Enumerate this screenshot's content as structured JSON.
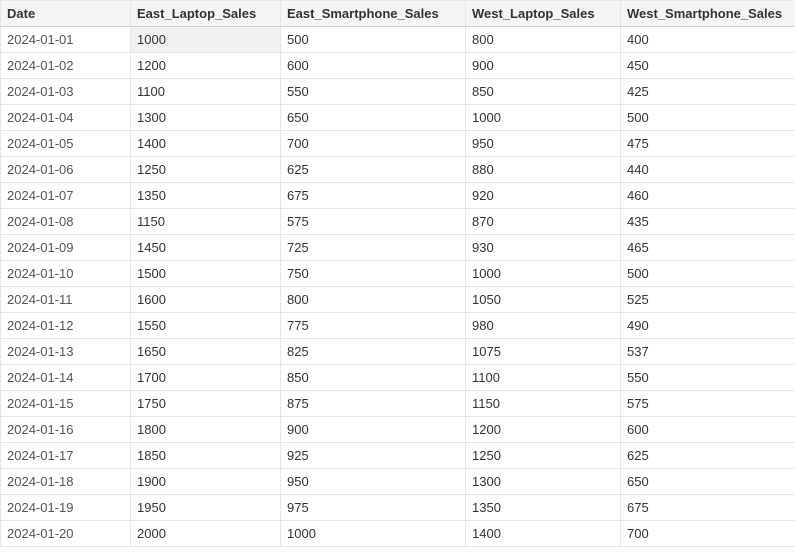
{
  "table": {
    "type": "table",
    "columns": [
      {
        "key": "date",
        "label": "Date",
        "width": 130,
        "align": "left"
      },
      {
        "key": "el",
        "label": "East_Laptop_Sales",
        "width": 150,
        "align": "left"
      },
      {
        "key": "es",
        "label": "East_Smartphone_Sales",
        "width": 185,
        "align": "left"
      },
      {
        "key": "wl",
        "label": "West_Laptop_Sales",
        "width": 155,
        "align": "left"
      },
      {
        "key": "ws",
        "label": "West_Smartphone_Sales",
        "width": 175,
        "align": "left"
      }
    ],
    "rows": [
      [
        "2024-01-01",
        1000,
        500,
        800,
        400
      ],
      [
        "2024-01-02",
        1200,
        600,
        900,
        450
      ],
      [
        "2024-01-03",
        1100,
        550,
        850,
        425
      ],
      [
        "2024-01-04",
        1300,
        650,
        1000,
        500
      ],
      [
        "2024-01-05",
        1400,
        700,
        950,
        475
      ],
      [
        "2024-01-06",
        1250,
        625,
        880,
        440
      ],
      [
        "2024-01-07",
        1350,
        675,
        920,
        460
      ],
      [
        "2024-01-08",
        1150,
        575,
        870,
        435
      ],
      [
        "2024-01-09",
        1450,
        725,
        930,
        465
      ],
      [
        "2024-01-10",
        1500,
        750,
        1000,
        500
      ],
      [
        "2024-01-11",
        1600,
        800,
        1050,
        525
      ],
      [
        "2024-01-12",
        1550,
        775,
        980,
        490
      ],
      [
        "2024-01-13",
        1650,
        825,
        1075,
        537
      ],
      [
        "2024-01-14",
        1700,
        850,
        1100,
        550
      ],
      [
        "2024-01-15",
        1750,
        875,
        1150,
        575
      ],
      [
        "2024-01-16",
        1800,
        900,
        1200,
        600
      ],
      [
        "2024-01-17",
        1850,
        925,
        1250,
        625
      ],
      [
        "2024-01-18",
        1900,
        950,
        1300,
        650
      ],
      [
        "2024-01-19",
        1950,
        975,
        1350,
        675
      ],
      [
        "2024-01-20",
        2000,
        1000,
        1400,
        700
      ]
    ],
    "selected_cell": {
      "row": 0,
      "col": 1
    },
    "header_background": "#f5f5f5",
    "header_text_color": "#333333",
    "row_background": "#ffffff",
    "border_color": "#e6e6e6",
    "selected_background": "#f0f0f0",
    "font_family": "Segoe UI",
    "font_size_pt": 10,
    "header_font_weight": 700
  }
}
